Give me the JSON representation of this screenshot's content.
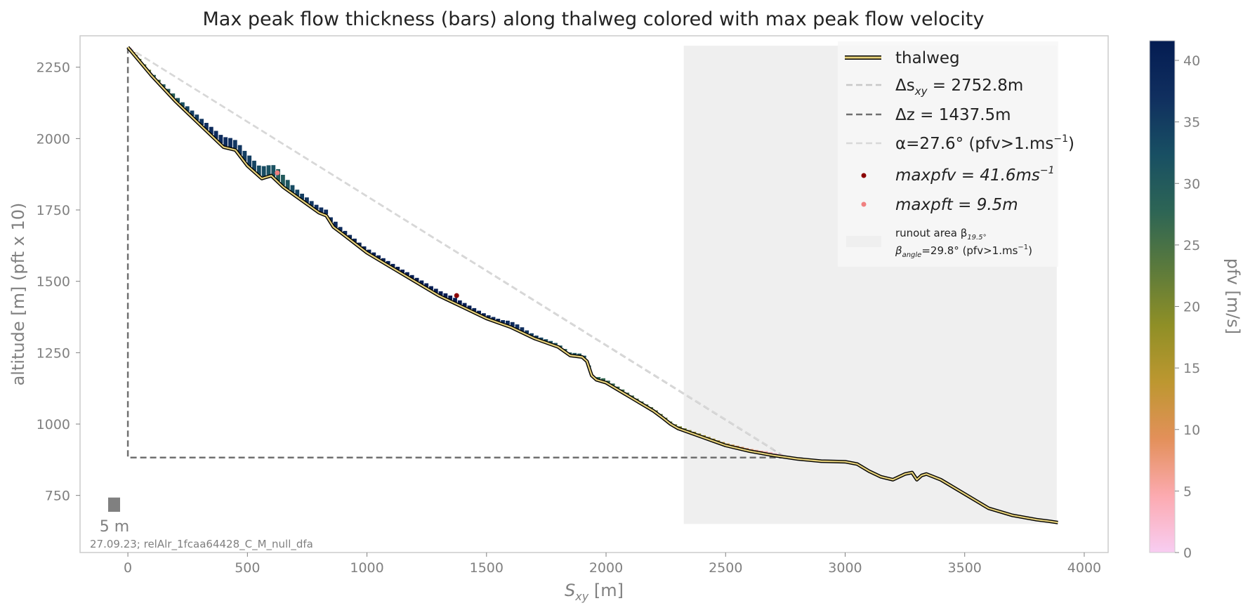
{
  "chart_data": {
    "type": "line",
    "title": "Max peak flow thickness (bars) along thalweg colored with max peak flow velocity",
    "xlabel": "S_xy [m]",
    "xlabel_main": "S",
    "xlabel_sub": "xy",
    "xlabel_unit": " [m]",
    "ylabel": "altitude [m] (pft x 10)",
    "xlim": [
      -200,
      4100
    ],
    "ylim": [
      550,
      2360
    ],
    "xticks": [
      0,
      500,
      1000,
      1500,
      2000,
      2500,
      3000,
      3500,
      4000
    ],
    "yticks": [
      750,
      1000,
      1250,
      1500,
      1750,
      2000,
      2250
    ],
    "grid": false,
    "legend_position": "top-right",
    "legend": {
      "thalweg": "thalweg",
      "delta_s_pre": "Δs",
      "delta_s_sub": "xy",
      "delta_s_post": " = 2752.8m",
      "delta_z": "Δz = 1437.5m",
      "alpha_pre": "α=27.6° (pfv>1.ms",
      "alpha_sup": "−1",
      "alpha_post": ")",
      "maxpfv_pre": "maxpfv = 41.6ms",
      "maxpfv_sup": "−1",
      "maxpft": "maxpft = 9.5m",
      "runout_pre": "runout area β",
      "runout_sub": "19.5°",
      "beta_pre": "β",
      "beta_sub": "angle",
      "beta_post": "=29.8° (pfv>1.ms",
      "beta_sup": "−1",
      "beta_end": ")"
    },
    "scale_bar_label": "5 m",
    "scale_bar_value_m": 5,
    "footer_text": "27.09.23; relAlr_1fcaa64428_C_M_null_dfa",
    "colorbar": {
      "label": "pfv [m/s]",
      "min": 0,
      "max": 41.6,
      "ticks": [
        0,
        5,
        10,
        15,
        20,
        25,
        30,
        35,
        40
      ],
      "colors": [
        "#f8cdf2",
        "#fcaab0",
        "#e3905a",
        "#bd9730",
        "#8f8f26",
        "#5b7a3c",
        "#2d6555",
        "#184f63",
        "#102f5f",
        "#041c52"
      ]
    },
    "thalweg": {
      "x": [
        0,
        100,
        200,
        300,
        400,
        450,
        500,
        560,
        600,
        650,
        700,
        800,
        830,
        860,
        900,
        1000,
        1100,
        1200,
        1300,
        1400,
        1500,
        1600,
        1700,
        1800,
        1850,
        1900,
        1920,
        1940,
        1960,
        2000,
        2100,
        2200,
        2240,
        2270,
        2300,
        2400,
        2500,
        2600,
        2700,
        2800,
        2900,
        3000,
        3050,
        3100,
        3150,
        3200,
        3250,
        3280,
        3300,
        3320,
        3340,
        3400,
        3500,
        3600,
        3700,
        3800,
        3850,
        3890
      ],
      "y": [
        2320,
        2220,
        2130,
        2050,
        1970,
        1960,
        1905,
        1860,
        1870,
        1830,
        1800,
        1740,
        1730,
        1690,
        1665,
        1600,
        1550,
        1500,
        1450,
        1410,
        1370,
        1340,
        1300,
        1270,
        1240,
        1235,
        1220,
        1170,
        1155,
        1145,
        1095,
        1045,
        1020,
        1000,
        985,
        955,
        925,
        905,
        890,
        878,
        870,
        868,
        860,
        835,
        815,
        805,
        825,
        830,
        805,
        820,
        825,
        805,
        755,
        705,
        680,
        665,
        660,
        655
      ]
    },
    "series": [
      {
        "name": "Δs_xy = 2752.8m",
        "x": [
          0,
          2752.8
        ],
        "y": [
          2320,
          882.5
        ]
      },
      {
        "name": "Δz = 1437.5m",
        "x": [
          0,
          0,
          2752.8
        ],
        "y": [
          2320,
          882.5,
          882.5
        ]
      },
      {
        "name": "α=27.6° (pfv>1.ms−1)",
        "x": [
          0,
          2700
        ],
        "y": [
          2320,
          912
        ]
      }
    ],
    "pfv_bars": [
      [
        0,
        3,
        2
      ],
      [
        15,
        3,
        12
      ],
      [
        25,
        3,
        18
      ],
      [
        40,
        4,
        22
      ],
      [
        60,
        5,
        24
      ],
      [
        80,
        6,
        22
      ],
      [
        100,
        7,
        28
      ],
      [
        120,
        8,
        25
      ],
      [
        140,
        10,
        30
      ],
      [
        160,
        12,
        30
      ],
      [
        180,
        14,
        29
      ],
      [
        200,
        15,
        31
      ],
      [
        220,
        16,
        32
      ],
      [
        240,
        18,
        34
      ],
      [
        260,
        19,
        35
      ],
      [
        280,
        21,
        35
      ],
      [
        300,
        22,
        36
      ],
      [
        320,
        24,
        37
      ],
      [
        340,
        26,
        38
      ],
      [
        360,
        28,
        38
      ],
      [
        380,
        30,
        38
      ],
      [
        400,
        32,
        38
      ],
      [
        420,
        33,
        37
      ],
      [
        440,
        30,
        36
      ],
      [
        460,
        34,
        36
      ],
      [
        480,
        36,
        35
      ],
      [
        500,
        38,
        35
      ],
      [
        520,
        35,
        34
      ],
      [
        540,
        33,
        33
      ],
      [
        560,
        36,
        33
      ],
      [
        580,
        34,
        32
      ],
      [
        600,
        40,
        32
      ],
      [
        620,
        42,
        30
      ],
      [
        640,
        38,
        30
      ],
      [
        660,
        32,
        31
      ],
      [
        680,
        26,
        33
      ],
      [
        700,
        22,
        34
      ],
      [
        720,
        20,
        35
      ],
      [
        740,
        19,
        36
      ],
      [
        760,
        18,
        36
      ],
      [
        780,
        17,
        37
      ],
      [
        800,
        17,
        37
      ],
      [
        820,
        16,
        37
      ],
      [
        840,
        16,
        37
      ],
      [
        860,
        20,
        38
      ],
      [
        880,
        14,
        38
      ],
      [
        900,
        13,
        38
      ],
      [
        920,
        12,
        38
      ],
      [
        940,
        12,
        39
      ],
      [
        960,
        11,
        39
      ],
      [
        980,
        11,
        39
      ],
      [
        1000,
        11,
        40
      ],
      [
        1020,
        11,
        40
      ],
      [
        1040,
        11,
        40
      ],
      [
        1060,
        11,
        40
      ],
      [
        1080,
        11,
        40
      ],
      [
        1100,
        11,
        40
      ],
      [
        1120,
        11,
        40
      ],
      [
        1140,
        11,
        41
      ],
      [
        1160,
        12,
        41
      ],
      [
        1180,
        12,
        41
      ],
      [
        1200,
        12,
        41
      ],
      [
        1220,
        13,
        41
      ],
      [
        1240,
        13,
        41
      ],
      [
        1260,
        13,
        41
      ],
      [
        1280,
        14,
        41
      ],
      [
        1300,
        14,
        41
      ],
      [
        1320,
        15,
        41.6
      ],
      [
        1340,
        15,
        41.6
      ],
      [
        1360,
        15,
        41.6
      ],
      [
        1380,
        14,
        41.6
      ],
      [
        1400,
        13,
        41
      ],
      [
        1420,
        12,
        41
      ],
      [
        1440,
        11,
        40
      ],
      [
        1460,
        10,
        40
      ],
      [
        1480,
        9,
        40
      ],
      [
        1500,
        9,
        39
      ],
      [
        1520,
        9,
        39
      ],
      [
        1540,
        9,
        39
      ],
      [
        1560,
        10,
        38
      ],
      [
        1580,
        14,
        38
      ],
      [
        1600,
        16,
        38
      ],
      [
        1620,
        16,
        37
      ],
      [
        1640,
        14,
        37
      ],
      [
        1660,
        11,
        36
      ],
      [
        1680,
        9,
        35
      ],
      [
        1700,
        8,
        35
      ],
      [
        1720,
        7,
        34
      ],
      [
        1740,
        7,
        33
      ],
      [
        1760,
        7,
        32
      ],
      [
        1780,
        6,
        31
      ],
      [
        1800,
        6,
        31
      ],
      [
        1820,
        6,
        30
      ],
      [
        1840,
        6,
        30
      ],
      [
        1860,
        6,
        31
      ],
      [
        1880,
        6,
        31
      ],
      [
        1900,
        7,
        32
      ],
      [
        1920,
        5,
        30
      ],
      [
        1960,
        7,
        28
      ],
      [
        1980,
        8,
        27
      ],
      [
        2000,
        7,
        27
      ],
      [
        2020,
        7,
        27
      ],
      [
        2040,
        6,
        27
      ],
      [
        2060,
        6,
        26
      ],
      [
        2080,
        5,
        26
      ],
      [
        2100,
        5,
        26
      ],
      [
        2120,
        4,
        25
      ],
      [
        2140,
        4,
        25
      ],
      [
        2160,
        4,
        24
      ],
      [
        2180,
        4,
        24
      ],
      [
        2200,
        4,
        23
      ],
      [
        2220,
        4,
        23
      ],
      [
        2240,
        4,
        22
      ],
      [
        2260,
        4,
        22
      ],
      [
        2280,
        4,
        21
      ],
      [
        2300,
        5,
        20
      ],
      [
        2320,
        4,
        20
      ],
      [
        2340,
        4,
        19
      ],
      [
        2360,
        4,
        18
      ],
      [
        2380,
        4,
        18
      ],
      [
        2400,
        4,
        17
      ],
      [
        2420,
        4,
        16
      ],
      [
        2440,
        4,
        16
      ],
      [
        2460,
        4,
        15
      ],
      [
        2480,
        4,
        14
      ],
      [
        2500,
        4,
        13
      ],
      [
        2520,
        4,
        12
      ],
      [
        2540,
        4,
        11
      ],
      [
        2560,
        4,
        10
      ],
      [
        2580,
        4,
        9
      ],
      [
        2600,
        4,
        8
      ],
      [
        2620,
        4,
        7
      ],
      [
        2640,
        4,
        6
      ],
      [
        2660,
        5,
        5
      ],
      [
        2680,
        5,
        4
      ],
      [
        2700,
        4,
        3
      ],
      [
        2720,
        3,
        2
      ]
    ],
    "max_pfv_point": {
      "x": 1375,
      "y": 1450,
      "value_ms": 41.6,
      "color": "#8b0000"
    },
    "max_pft_point": {
      "x": 625,
      "y": 1880,
      "value_m": 9.5,
      "color": "#f08080"
    },
    "runout_area": {
      "x0": 2325,
      "x1": 3885,
      "y0": 650,
      "y1": 2325
    },
    "colors": {
      "thalweg_outer": "#000000",
      "thalweg_inner": "#e6d17a",
      "dashed_light": "#c8c8c8",
      "dashed_dark": "#707070",
      "runout": "#efefef",
      "axis": "#808080"
    }
  }
}
